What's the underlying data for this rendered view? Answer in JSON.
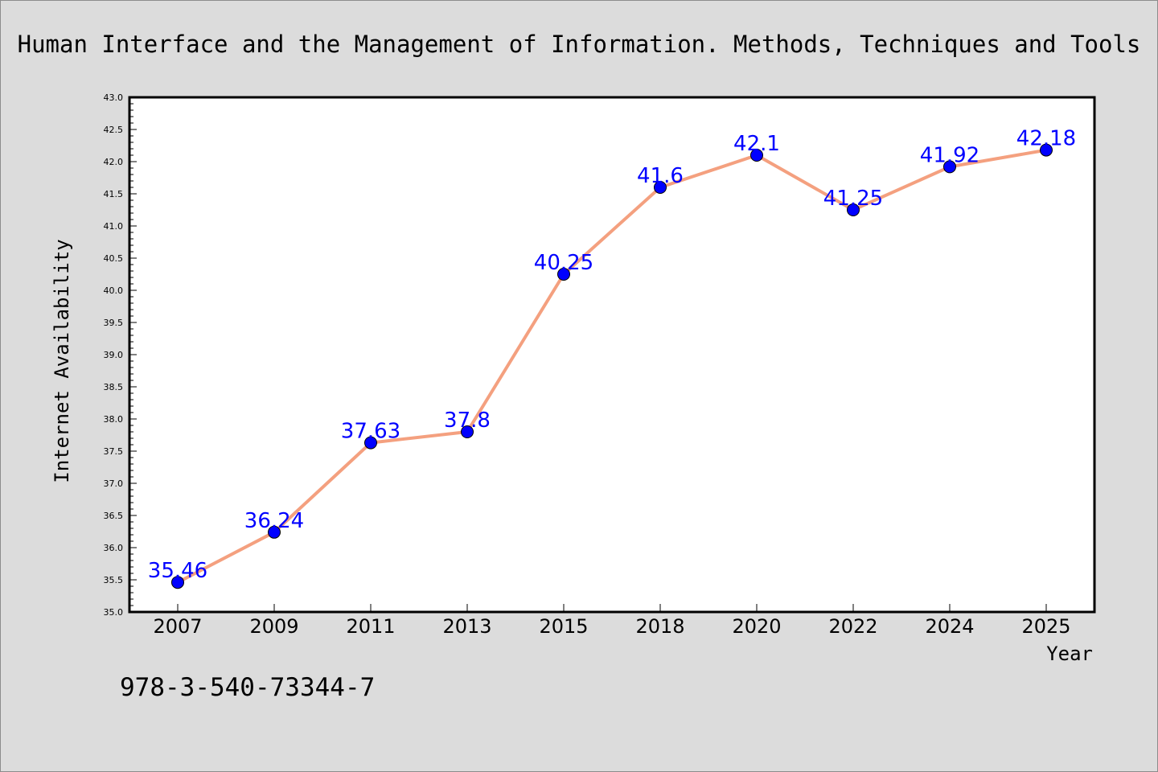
{
  "chart_data": {
    "type": "line",
    "title": "Human Interface and the Management of Information. Methods, Techniques and Tools",
    "xlabel": "Year",
    "ylabel": "Internet Availability",
    "categories": [
      "2007",
      "2009",
      "2011",
      "2013",
      "2015",
      "2018",
      "2020",
      "2022",
      "2024",
      "2025"
    ],
    "series": [
      {
        "values": [
          35.46,
          36.24,
          37.63,
          37.8,
          40.25,
          41.6,
          42.1,
          41.25,
          41.92,
          42.18
        ],
        "data_labels": [
          "35.46",
          "36.24",
          "37.63",
          "37.8",
          "40.25",
          "41.6",
          "42.1",
          "41.25",
          "41.92",
          "42.18"
        ]
      }
    ],
    "ylim": [
      35.0,
      43.0
    ],
    "yticks": [
      "35.0",
      "35.5",
      "36.0",
      "36.5",
      "37.0",
      "37.5",
      "38.0",
      "38.5",
      "39.0",
      "39.5",
      "40.0",
      "40.5",
      "41.0",
      "41.5",
      "42.0",
      "42.5",
      "43.0"
    ],
    "grid": false,
    "line_color": "#f4a07f",
    "marker_color": "#0000ff",
    "label_color": "#0000ff"
  },
  "footer": {
    "isbn": "978-3-540-73344-7"
  }
}
